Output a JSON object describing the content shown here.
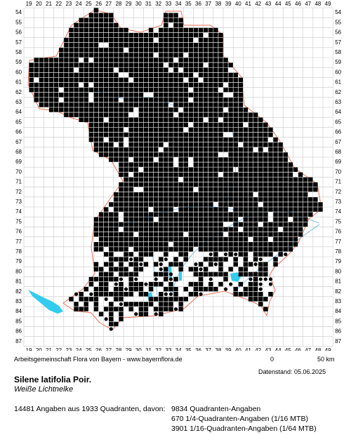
{
  "grid": {
    "columns": [
      "19",
      "20",
      "21",
      "22",
      "23",
      "24",
      "25",
      "26",
      "27",
      "28",
      "29",
      "30",
      "31",
      "32",
      "33",
      "34",
      "35",
      "36",
      "37",
      "38",
      "39",
      "40",
      "41",
      "42",
      "43",
      "44",
      "45",
      "46",
      "47",
      "48",
      "49"
    ],
    "rows": [
      "54",
      "55",
      "56",
      "57",
      "58",
      "59",
      "60",
      "61",
      "62",
      "63",
      "64",
      "65",
      "66",
      "67",
      "68",
      "69",
      "70",
      "71",
      "72",
      "73",
      "74",
      "75",
      "76",
      "77",
      "78",
      "79",
      "80",
      "81",
      "82",
      "83",
      "84",
      "85",
      "86",
      "87"
    ]
  },
  "colors": {
    "grid_line": "#c8c8c8",
    "border": "#e8705a",
    "water": "#33ccee",
    "marker": "#000000"
  },
  "credit": "Arbeitsgemeinschaft Flora von Bayern - www.bayernflora.de",
  "scale": {
    "left_label": "0",
    "right_label": "50 km"
  },
  "date_label": "Datenstand: 05.06.2025",
  "species": {
    "scientific": "Silene latifolia Poir.",
    "common": "Weiße Lichtnelke"
  },
  "summary": "14481 Angaben aus 1933 Quadranten, davon:",
  "stats": [
    "9834 Quadranten-Angaben",
    "670 1/4-Quadranten-Angaben (1/16 MTB)",
    "3901 1/16-Quadranten-Angaben (1/64 MTB)"
  ]
}
